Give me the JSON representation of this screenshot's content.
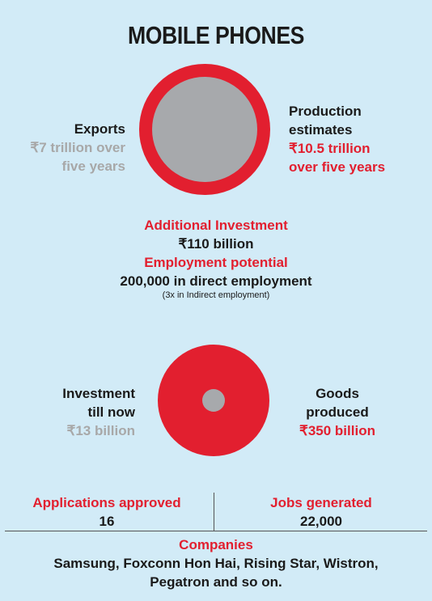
{
  "title": "MOBILE PHONES",
  "exports": {
    "label": "Exports",
    "value_line1": "₹7 trillion over",
    "value_line2": "five years"
  },
  "production": {
    "label_line1": "Production",
    "label_line2": "estimates",
    "value_line1": "₹10.5 trillion",
    "value_line2": "over five years"
  },
  "additional_investment": {
    "label": "Additional Investment",
    "value": "₹110 billion"
  },
  "employment": {
    "label": "Employment potential",
    "value": "200,000 in direct employment",
    "note": "(3x in Indirect employment)"
  },
  "investment_till_now": {
    "label_line1": "Investment",
    "label_line2": "till now",
    "value": "₹13 billion"
  },
  "goods_produced": {
    "label_line1": "Goods",
    "label_line2": "produced",
    "value": "₹350 billion"
  },
  "applications": {
    "label": "Applications approved",
    "value": "16"
  },
  "jobs": {
    "label": "Jobs generated",
    "value": "22,000"
  },
  "companies": {
    "label": "Companies",
    "line1": "Samsung, Foxconn Hon Hai, Rising Star, Wistron,",
    "line2": "Pegatron and so on."
  },
  "colors": {
    "background": "#d2ebf7",
    "accent_red": "#e21f2f",
    "grey": "#a7a9ac"
  }
}
